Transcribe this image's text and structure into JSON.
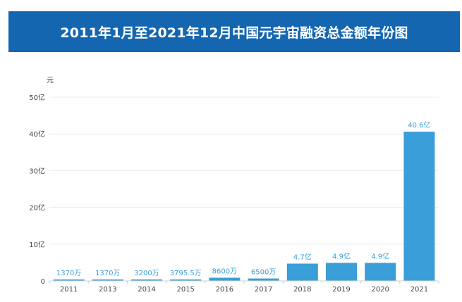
{
  "title": "2011年1月至2021年12月中国元宇宙融资总金额年份图",
  "chart_data": {
    "type": "bar",
    "unit_label": "元",
    "categories": [
      "2011",
      "2013",
      "2014",
      "2015",
      "2016",
      "2017",
      "2018",
      "2019",
      "2020",
      "2021"
    ],
    "values_yi": [
      0.137,
      0.137,
      0.32,
      0.37955,
      0.86,
      0.65,
      4.7,
      4.9,
      4.9,
      40.6
    ],
    "data_labels": [
      "1370万",
      "1370万",
      "3200万",
      "3795.5万",
      "8600万",
      "6500万",
      "4.7亿",
      "4.9亿",
      "4.9亿",
      "40.6亿"
    ],
    "y_ticks": [
      0,
      10,
      20,
      30,
      40,
      50
    ],
    "y_tick_labels": [
      "0",
      "10亿",
      "20亿",
      "30亿",
      "40亿",
      "50亿"
    ],
    "ylim": [
      0,
      50
    ],
    "grid": true,
    "colors": {
      "bar": "#3a9ed8",
      "label": "#3a9ed8",
      "axis_text": "#444444",
      "grid": "#ececec",
      "header_bg": "#1566b0"
    }
  }
}
